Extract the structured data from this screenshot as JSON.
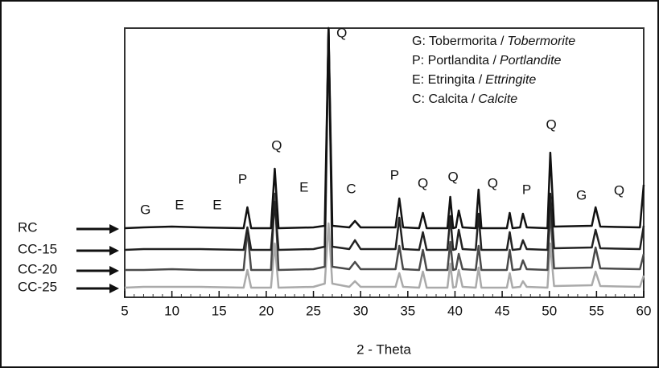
{
  "chart_data": {
    "type": "line",
    "xlabel": "2 - Theta",
    "x": [
      5,
      7,
      10,
      13,
      17.6,
      18,
      18.4,
      20.5,
      20.9,
      21.3,
      25,
      26.2,
      26.6,
      27,
      28.8,
      29.4,
      30,
      33.7,
      34.1,
      34.5,
      36.2,
      36.6,
      37,
      39.2,
      39.5,
      39.8,
      40.1,
      40.4,
      40.8,
      42.2,
      42.5,
      42.8,
      45.5,
      45.8,
      46.1,
      46.9,
      47.2,
      47.6,
      49.8,
      50.1,
      50.5,
      54.5,
      54.9,
      55.4,
      59.6,
      60
    ],
    "series": [
      {
        "name": "RC",
        "color": "#111111",
        "values": [
          0,
          1,
          2,
          1,
          0,
          26,
          0,
          0,
          74,
          0,
          1,
          3,
          249,
          3,
          1,
          9,
          1,
          1,
          37,
          1,
          0,
          19,
          0,
          0,
          39,
          0,
          1,
          22,
          1,
          0,
          48,
          0,
          0,
          19,
          0,
          1,
          18,
          1,
          0,
          94,
          2,
          3,
          26,
          2,
          1,
          54
        ]
      },
      {
        "name": "CC-15",
        "color": "#222222",
        "values": [
          0,
          1,
          1,
          1,
          0,
          28,
          0,
          0,
          60,
          0,
          1,
          4,
          276,
          4,
          1,
          12,
          1,
          1,
          40,
          1,
          0,
          22,
          0,
          0,
          42,
          0,
          1,
          25,
          1,
          0,
          45,
          0,
          0,
          22,
          0,
          1,
          12,
          1,
          0,
          70,
          2,
          3,
          25,
          2,
          1,
          30
        ]
      },
      {
        "name": "CC-20",
        "color": "#4a4a4a",
        "values": [
          0,
          0,
          1,
          0,
          0,
          50,
          0,
          0,
          95,
          0,
          1,
          4,
          301,
          4,
          1,
          10,
          1,
          1,
          30,
          1,
          0,
          25,
          0,
          0,
          35,
          0,
          1,
          20,
          1,
          0,
          30,
          0,
          0,
          25,
          0,
          1,
          12,
          1,
          0,
          75,
          2,
          3,
          28,
          2,
          1,
          20
        ]
      },
      {
        "name": "CC-25",
        "color": "#aaaaaa",
        "values": [
          0,
          1,
          1,
          1,
          0,
          22,
          0,
          0,
          55,
          0,
          1,
          5,
          80,
          5,
          1,
          8,
          1,
          1,
          18,
          1,
          0,
          20,
          0,
          0,
          30,
          0,
          1,
          22,
          1,
          0,
          25,
          0,
          0,
          18,
          0,
          1,
          8,
          1,
          0,
          55,
          2,
          3,
          20,
          2,
          1,
          15
        ]
      }
    ],
    "xlim": [
      5,
      60
    ],
    "xticks": [
      5,
      10,
      15,
      20,
      25,
      30,
      35,
      40,
      45,
      50,
      55,
      60
    ],
    "annotations": [
      {
        "text": "G",
        "x": 7.2,
        "y": 12
      },
      {
        "text": "E",
        "x": 10.8,
        "y": 18
      },
      {
        "text": "E",
        "x": 14.8,
        "y": 18
      },
      {
        "text": "P",
        "x": 17.5,
        "y": 50
      },
      {
        "text": "Q",
        "x": 21.1,
        "y": 92
      },
      {
        "text": "E",
        "x": 24,
        "y": 40
      },
      {
        "text": "Q",
        "x": 28,
        "y": 232
      },
      {
        "text": "C",
        "x": 29,
        "y": 38
      },
      {
        "text": "P",
        "x": 33.6,
        "y": 55
      },
      {
        "text": "Q",
        "x": 36.6,
        "y": 45
      },
      {
        "text": "Q",
        "x": 39.8,
        "y": 53
      },
      {
        "text": "Q",
        "x": 44,
        "y": 45
      },
      {
        "text": "P",
        "x": 47.6,
        "y": 37
      },
      {
        "text": "Q",
        "x": 50.2,
        "y": 118
      },
      {
        "text": "G",
        "x": 53.4,
        "y": 30
      },
      {
        "text": "Q",
        "x": 57.4,
        "y": 36
      }
    ],
    "legend": [
      {
        "label": "G: Tobermorita /",
        "italic": "Tobermorite"
      },
      {
        "label": "P: Portlandita /",
        "italic": "Portlandite"
      },
      {
        "label": "E: Etringita /",
        "italic": "Ettringite"
      },
      {
        "label": "C: Calcita /",
        "italic": "Calcite"
      }
    ]
  }
}
